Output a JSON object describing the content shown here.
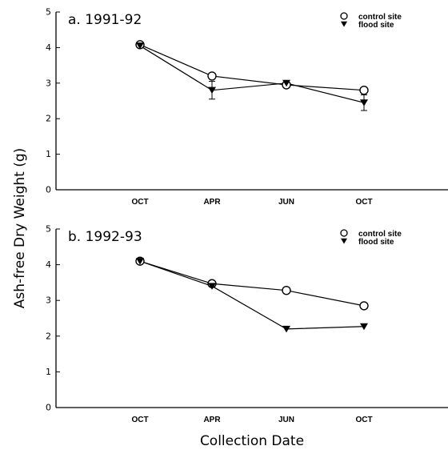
{
  "figure": {
    "y_axis_label": "Ash-free Dry Weight (g)",
    "x_axis_label": "Collection Date"
  },
  "chart_data": [
    {
      "type": "line",
      "title": "a. 1991-92",
      "categories": [
        "OCT",
        "APR",
        "JUN",
        "OCT"
      ],
      "ylim": [
        0,
        5
      ],
      "yticks": [
        0,
        1,
        2,
        3,
        4,
        5
      ],
      "legend_position": "top-right",
      "grid": false,
      "series": [
        {
          "name": "control site",
          "marker": "open-circle",
          "values": [
            4.08,
            3.2,
            2.95,
            2.8
          ],
          "errors": [
            0,
            0,
            0,
            0
          ]
        },
        {
          "name": "flood site",
          "marker": "filled-triangle-down",
          "values": [
            4.05,
            2.8,
            3.0,
            2.45
          ],
          "errors": [
            0,
            0.25,
            0,
            0.22
          ]
        }
      ]
    },
    {
      "type": "line",
      "title": "b. 1992-93",
      "categories": [
        "OCT",
        "APR",
        "JUN",
        "OCT"
      ],
      "ylim": [
        0,
        5
      ],
      "yticks": [
        0,
        1,
        2,
        3,
        4,
        5
      ],
      "legend_position": "top-right",
      "grid": false,
      "series": [
        {
          "name": "control site",
          "marker": "open-circle",
          "values": [
            4.1,
            3.47,
            3.28,
            2.85
          ],
          "errors": [
            0,
            0,
            0,
            0
          ]
        },
        {
          "name": "flood site",
          "marker": "filled-triangle-down",
          "values": [
            4.1,
            3.4,
            2.2,
            2.27
          ],
          "errors": [
            0,
            0,
            0,
            0
          ]
        }
      ]
    }
  ]
}
